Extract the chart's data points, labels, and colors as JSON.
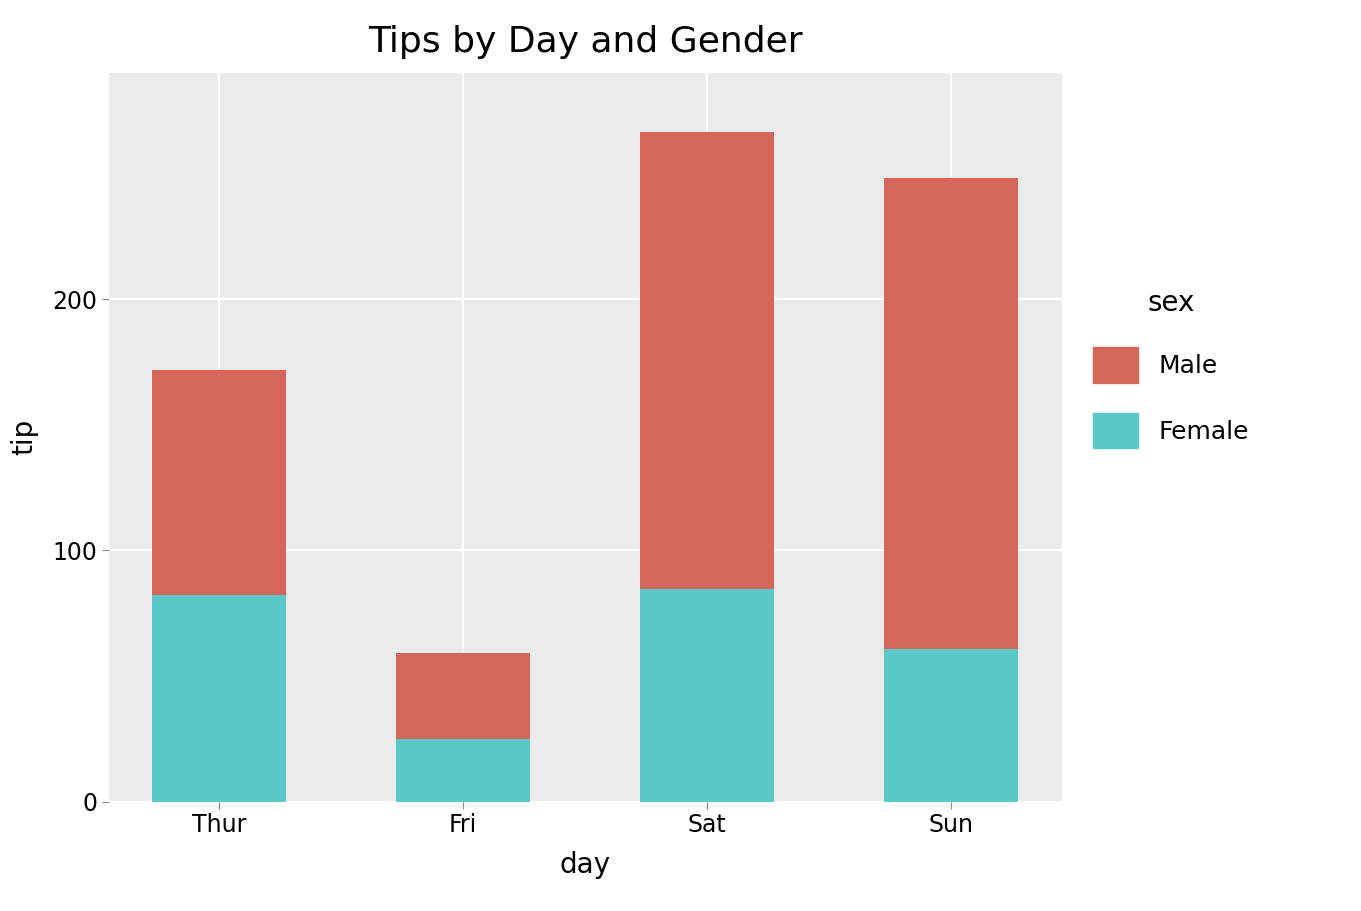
{
  "title": "Tips by Day and Gender",
  "xlabel": "day",
  "ylabel": "tip",
  "categories": [
    "Thur",
    "Fri",
    "Sat",
    "Sun"
  ],
  "female_values": [
    82.17,
    25.03,
    84.45,
    60.61
  ],
  "male_values": [
    89.52,
    34.31,
    181.95,
    187.4
  ],
  "male_color": "#D4675A",
  "female_color": "#5BC8C8",
  "fig_bg_color": "#FFFFFF",
  "plot_bg_color": "#EBEBEB",
  "grid_color": "#FFFFFF",
  "legend_title": "sex",
  "legend_labels": [
    "Male",
    "Female"
  ],
  "bar_width": 0.55,
  "ylim": [
    0,
    290
  ],
  "yticks": [
    0,
    100,
    200
  ],
  "title_fontsize": 26,
  "label_fontsize": 20,
  "tick_fontsize": 17,
  "legend_fontsize": 18,
  "legend_title_fontsize": 20
}
